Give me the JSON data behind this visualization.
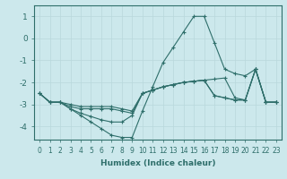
{
  "xlabel": "Humidex (Indice chaleur)",
  "background_color": "#cce8ec",
  "line_color": "#2e6e6a",
  "grid_color": "#b8d8dc",
  "xlim": [
    -0.5,
    23.5
  ],
  "ylim": [
    -4.6,
    1.5
  ],
  "yticks": [
    -4,
    -3,
    -2,
    -1,
    0,
    1
  ],
  "xticks": [
    0,
    1,
    2,
    3,
    4,
    5,
    6,
    7,
    8,
    9,
    10,
    11,
    12,
    13,
    14,
    15,
    16,
    17,
    18,
    19,
    20,
    21,
    22,
    23
  ],
  "lines": [
    {
      "x": [
        0,
        1,
        2,
        3,
        4,
        5,
        6,
        7,
        8,
        9,
        10,
        11,
        12,
        13,
        14,
        15,
        16,
        17,
        18,
        19,
        20,
        21,
        22,
        23
      ],
      "y": [
        -2.5,
        -2.9,
        -2.9,
        -3.2,
        -3.5,
        -3.8,
        -4.1,
        -4.4,
        -4.5,
        -4.5,
        -3.3,
        -2.2,
        -1.1,
        -0.4,
        0.3,
        1.0,
        1.0,
        -0.2,
        -1.4,
        -1.6,
        -1.7,
        -1.4,
        -2.9,
        -2.9
      ]
    },
    {
      "x": [
        0,
        1,
        2,
        3,
        4,
        5,
        6,
        7,
        8,
        9,
        10,
        11,
        12,
        13,
        14,
        15,
        16,
        17,
        18,
        19,
        20,
        21,
        22,
        23
      ],
      "y": [
        -2.5,
        -2.9,
        -2.9,
        -3.0,
        -3.1,
        -3.1,
        -3.1,
        -3.1,
        -3.2,
        -3.3,
        -2.5,
        -2.35,
        -2.2,
        -2.1,
        -2.0,
        -1.95,
        -1.9,
        -1.85,
        -1.8,
        -2.7,
        -2.8,
        -1.4,
        -2.9,
        -2.9
      ]
    },
    {
      "x": [
        0,
        1,
        2,
        3,
        4,
        5,
        6,
        7,
        8,
        9,
        10,
        11,
        12,
        13,
        14,
        15,
        16,
        17,
        18,
        19,
        20,
        21,
        22,
        23
      ],
      "y": [
        -2.5,
        -2.9,
        -2.9,
        -3.1,
        -3.2,
        -3.2,
        -3.2,
        -3.2,
        -3.3,
        -3.4,
        -2.5,
        -2.35,
        -2.2,
        -2.1,
        -2.0,
        -1.95,
        -1.9,
        -2.6,
        -2.7,
        -2.8,
        -2.8,
        -1.4,
        -2.9,
        -2.9
      ]
    },
    {
      "x": [
        0,
        1,
        2,
        3,
        4,
        5,
        6,
        7,
        8,
        9,
        10,
        11,
        12,
        13,
        14,
        15,
        16,
        17,
        18,
        19,
        20,
        21,
        22,
        23
      ],
      "y": [
        -2.5,
        -2.9,
        -2.9,
        -3.2,
        -3.4,
        -3.55,
        -3.7,
        -3.8,
        -3.8,
        -3.5,
        -2.5,
        -2.35,
        -2.2,
        -2.1,
        -2.0,
        -1.95,
        -1.9,
        -2.6,
        -2.7,
        -2.8,
        -2.8,
        -1.4,
        -2.9,
        -2.9
      ]
    }
  ]
}
